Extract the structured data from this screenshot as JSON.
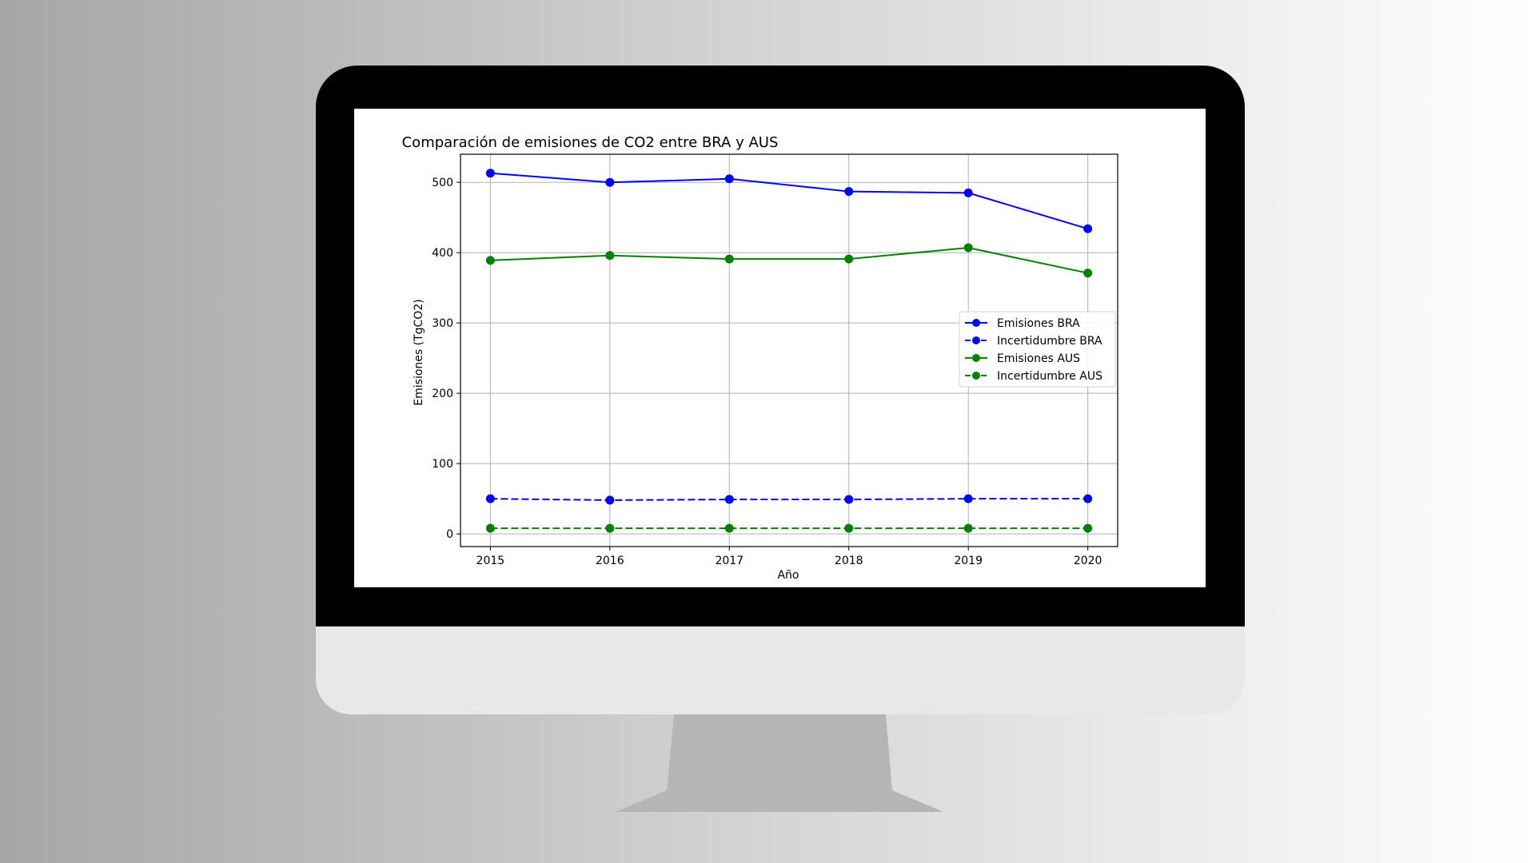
{
  "chart_data": {
    "type": "line",
    "title": "Comparación de emisiones de CO2 entre BRA y AUS",
    "xlabel": "Año",
    "ylabel": "Emisiones (TgCO2)",
    "x": [
      2015,
      2016,
      2017,
      2018,
      2019,
      2020
    ],
    "x_tick_labels": [
      "2015",
      "2016",
      "2017",
      "2018",
      "2019",
      "2020"
    ],
    "y_ticks": [
      0,
      100,
      200,
      300,
      400,
      500
    ],
    "y_tick_labels": [
      "0",
      "100",
      "200",
      "300",
      "400",
      "500"
    ],
    "xlim": [
      2014.75,
      2020.25
    ],
    "ylim": [
      -18,
      540
    ],
    "grid": true,
    "legend_position": "center-right",
    "series": [
      {
        "name": "Emisiones BRA",
        "values": [
          513,
          500,
          505,
          487,
          485,
          434
        ],
        "color": "#0000ff",
        "style": "solid"
      },
      {
        "name": "Incertidumbre BRA",
        "values": [
          50,
          48,
          49,
          49,
          50,
          50
        ],
        "color": "#0000ff",
        "style": "dashed"
      },
      {
        "name": "Emisiones AUS",
        "values": [
          389,
          396,
          391,
          391,
          407,
          371
        ],
        "color": "#008000",
        "style": "solid"
      },
      {
        "name": "Incertidumbre AUS",
        "values": [
          8,
          8,
          8,
          8,
          8,
          8
        ],
        "color": "#008000",
        "style": "dashed"
      }
    ]
  }
}
